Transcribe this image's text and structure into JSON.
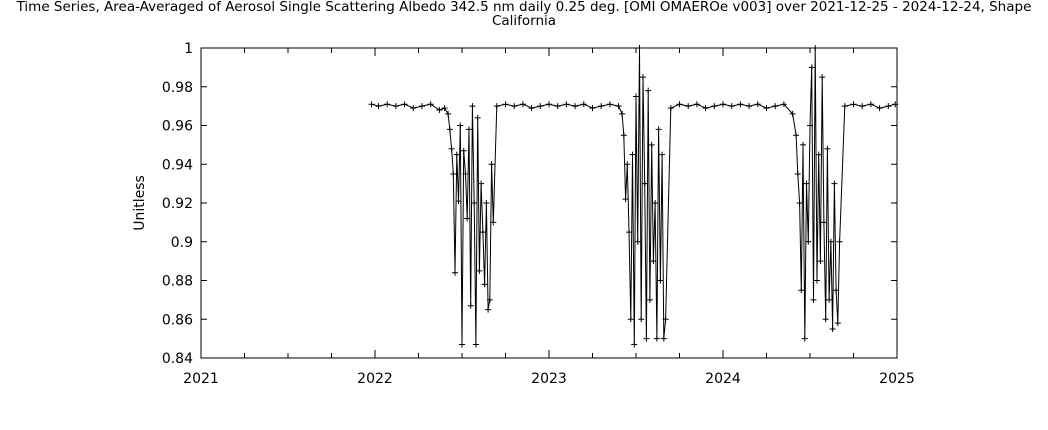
{
  "chart_data": {
    "type": "line",
    "title_lines": [
      "Time Series, Area-Averaged of Aerosol Single Scattering Albedo 342.5 nm daily 0.25 deg. [OMI OMAEROe v003] over 2021-12-25 - 2024-12-24, Shape",
      "California"
    ],
    "xlabel": "",
    "ylabel": "Unitless",
    "xlim": [
      2021.0,
      2025.0
    ],
    "ylim": [
      0.84,
      1.0
    ],
    "x_ticks": [
      "2021",
      "2022",
      "2023",
      "2024",
      "2025"
    ],
    "x_tick_values": [
      2021,
      2022,
      2023,
      2024,
      2025
    ],
    "y_ticks": [
      "0.84",
      "0.86",
      "0.88",
      "0.9",
      "0.92",
      "0.94",
      "0.96",
      "0.98",
      "1"
    ],
    "y_tick_values": [
      0.84,
      0.86,
      0.88,
      0.9,
      0.92,
      0.94,
      0.96,
      0.98,
      1.0
    ],
    "grid": false,
    "marker": "plus",
    "series": [
      {
        "name": "Single Scattering Albedo 342.5 nm",
        "x": [
          2021.98,
          2022.02,
          2022.07,
          2022.12,
          2022.17,
          2022.22,
          2022.27,
          2022.32,
          2022.37,
          2022.4,
          2022.42,
          2022.43,
          2022.44,
          2022.45,
          2022.46,
          2022.47,
          2022.48,
          2022.49,
          2022.5,
          2022.51,
          2022.52,
          2022.53,
          2022.54,
          2022.55,
          2022.56,
          2022.57,
          2022.58,
          2022.59,
          2022.6,
          2022.61,
          2022.62,
          2022.63,
          2022.64,
          2022.65,
          2022.66,
          2022.67,
          2022.68,
          2022.7,
          2022.75,
          2022.8,
          2022.85,
          2022.9,
          2022.95,
          2023.0,
          2023.05,
          2023.1,
          2023.15,
          2023.2,
          2023.25,
          2023.3,
          2023.35,
          2023.4,
          2023.42,
          2023.43,
          2023.44,
          2023.45,
          2023.46,
          2023.47,
          2023.48,
          2023.49,
          2023.5,
          2023.51,
          2023.52,
          2023.53,
          2023.54,
          2023.55,
          2023.56,
          2023.57,
          2023.58,
          2023.59,
          2023.6,
          2023.61,
          2023.62,
          2023.63,
          2023.64,
          2023.65,
          2023.66,
          2023.67,
          2023.7,
          2023.75,
          2023.8,
          2023.85,
          2023.9,
          2023.95,
          2024.0,
          2024.05,
          2024.1,
          2024.15,
          2024.2,
          2024.25,
          2024.3,
          2024.35,
          2024.4,
          2024.42,
          2024.43,
          2024.44,
          2024.45,
          2024.46,
          2024.47,
          2024.48,
          2024.49,
          2024.5,
          2024.51,
          2024.52,
          2024.53,
          2024.54,
          2024.55,
          2024.56,
          2024.57,
          2024.58,
          2024.59,
          2024.6,
          2024.61,
          2024.62,
          2024.63,
          2024.64,
          2024.65,
          2024.66,
          2024.67,
          2024.7,
          2024.75,
          2024.8,
          2024.85,
          2024.9,
          2024.95,
          2024.99
        ],
        "values": [
          0.971,
          0.97,
          0.971,
          0.97,
          0.971,
          0.969,
          0.97,
          0.971,
          0.968,
          0.969,
          0.966,
          0.958,
          0.948,
          0.935,
          0.884,
          0.945,
          0.921,
          0.96,
          0.847,
          0.947,
          0.935,
          0.912,
          0.958,
          0.867,
          0.97,
          0.92,
          0.847,
          0.964,
          0.885,
          0.93,
          0.905,
          0.878,
          0.92,
          0.865,
          0.87,
          0.94,
          0.91,
          0.97,
          0.971,
          0.97,
          0.971,
          0.969,
          0.97,
          0.971,
          0.97,
          0.971,
          0.97,
          0.971,
          0.969,
          0.97,
          0.971,
          0.97,
          0.966,
          0.955,
          0.922,
          0.94,
          0.905,
          0.86,
          0.945,
          0.847,
          0.975,
          0.9,
          1.0,
          0.86,
          0.985,
          0.93,
          0.85,
          0.978,
          0.87,
          0.95,
          0.89,
          0.92,
          0.85,
          0.958,
          0.88,
          0.945,
          0.85,
          0.86,
          0.969,
          0.971,
          0.97,
          0.971,
          0.969,
          0.97,
          0.971,
          0.97,
          0.971,
          0.97,
          0.971,
          0.969,
          0.97,
          0.971,
          0.966,
          0.955,
          0.935,
          0.92,
          0.875,
          0.95,
          0.85,
          0.93,
          0.9,
          0.96,
          0.99,
          0.87,
          1.0,
          0.88,
          0.945,
          0.89,
          0.985,
          0.91,
          0.86,
          0.948,
          0.87,
          0.9,
          0.855,
          0.93,
          0.875,
          0.858,
          0.9,
          0.97,
          0.971,
          0.97,
          0.971,
          0.969,
          0.97,
          0.971
        ]
      }
    ]
  }
}
